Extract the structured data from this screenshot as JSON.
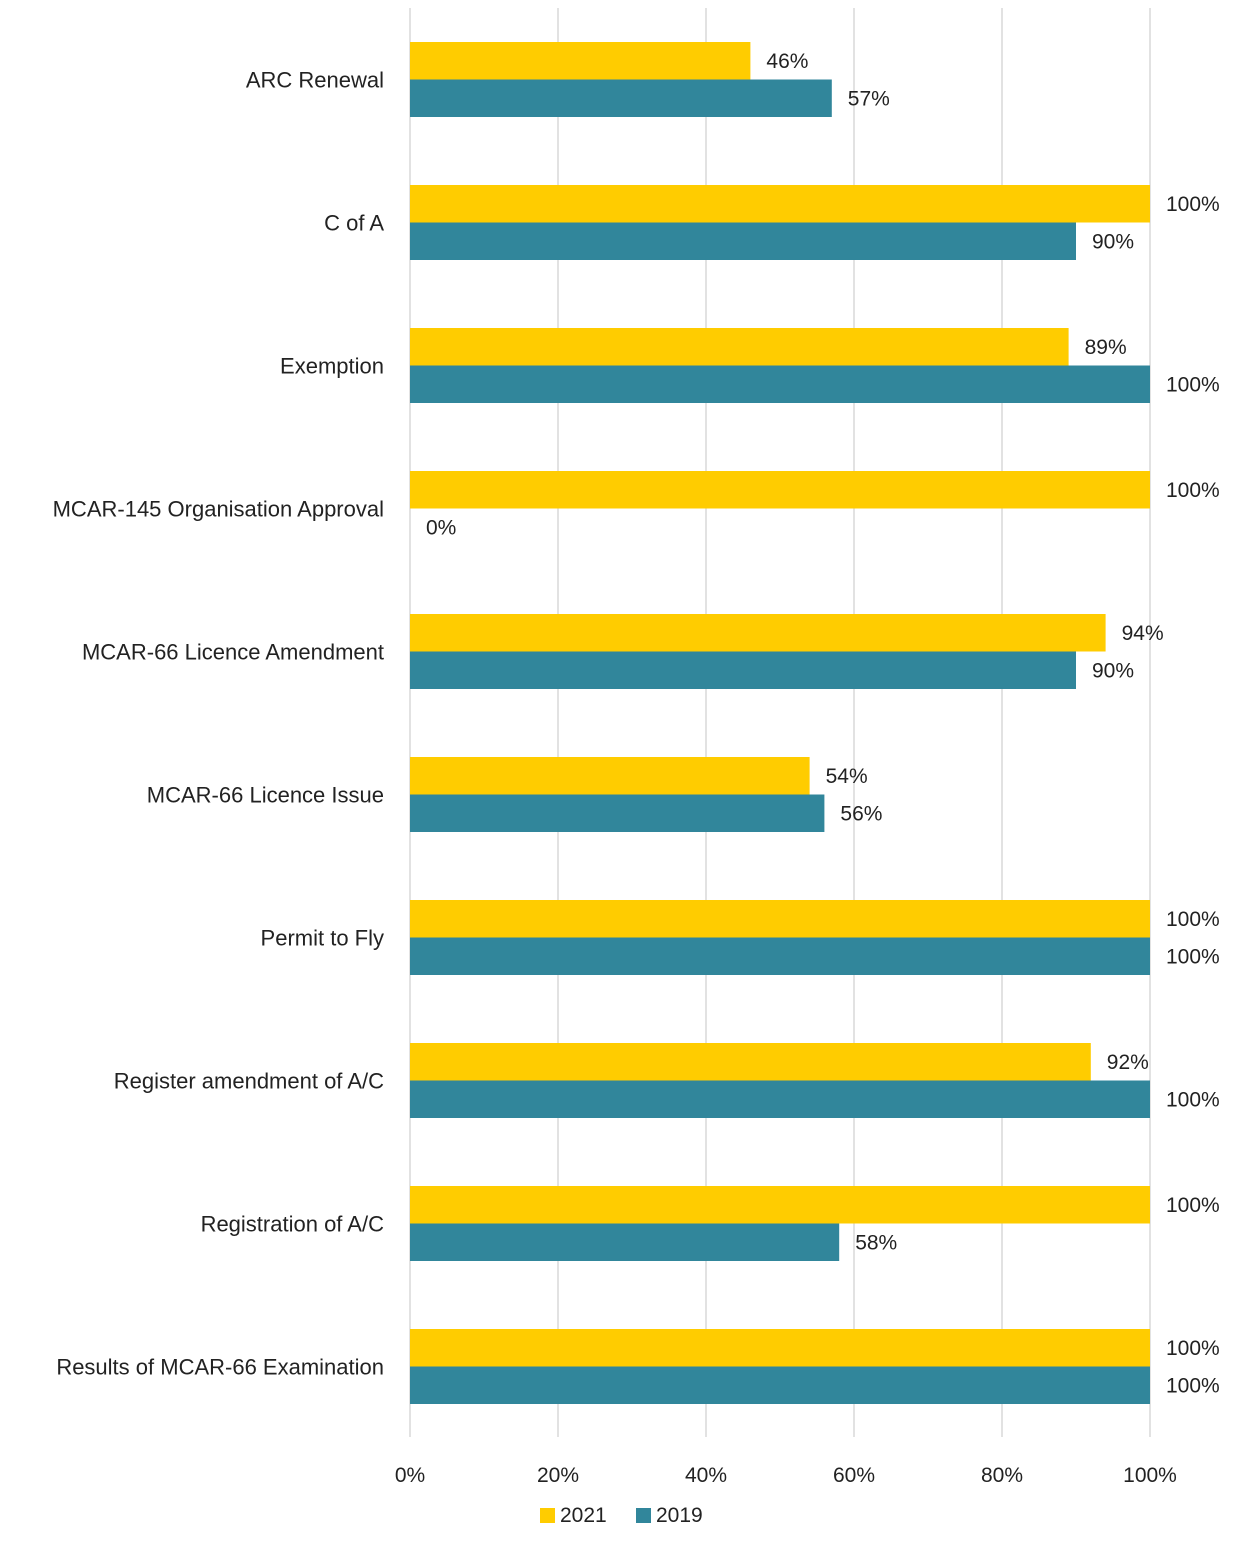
{
  "chart_data": {
    "type": "bar",
    "orientation": "horizontal",
    "categories": [
      "ARC Renewal",
      "C of A",
      "Exemption",
      "MCAR-145 Organisation Approval",
      "MCAR-66 Licence Amendment",
      "MCAR-66 Licence Issue",
      "Permit to Fly",
      "Register amendment of A/C",
      "Registration of A/C",
      "Results of MCAR-66 Examination"
    ],
    "series": [
      {
        "name": "2021",
        "color": "#FFCC00",
        "values": [
          46,
          100,
          89,
          100,
          94,
          54,
          100,
          92,
          100,
          100
        ],
        "labels": [
          "46%",
          "100%",
          "89%",
          "100%",
          "94%",
          "54%",
          "100%",
          "92%",
          "100%",
          "100%"
        ]
      },
      {
        "name": "2019",
        "color": "#31869B",
        "values": [
          57,
          90,
          100,
          0,
          90,
          56,
          100,
          100,
          58,
          100
        ],
        "labels": [
          "57%",
          "90%",
          "100%",
          "0%",
          "90%",
          "56%",
          "100%",
          "100%",
          "58%",
          "100%"
        ]
      }
    ],
    "xlim": [
      0,
      100
    ],
    "x_ticks": [
      0,
      20,
      40,
      60,
      80,
      100
    ],
    "x_tick_labels": [
      "0%",
      "20%",
      "40%",
      "60%",
      "80%",
      "100%"
    ],
    "grid": "vertical",
    "grid_color": "#D9D9D9",
    "legend_position": "bottom",
    "title": "",
    "xlabel": "",
    "ylabel": ""
  }
}
